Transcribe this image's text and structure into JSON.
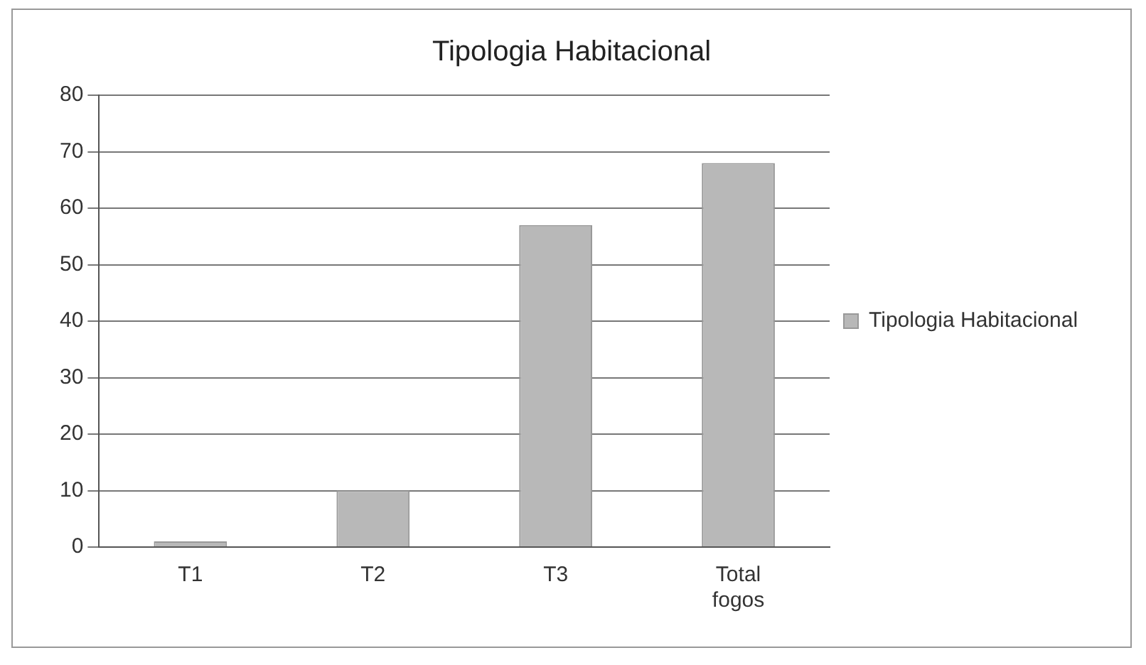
{
  "chart_data": {
    "type": "bar",
    "title": "Tipologia Habitacional",
    "categories": [
      "T1",
      "T2",
      "T3",
      "Total fogos"
    ],
    "series": [
      {
        "name": "Tipologia Habitacional",
        "color": "#b8b8b8",
        "values": [
          1,
          10,
          57,
          68
        ]
      }
    ],
    "ylim": [
      0,
      80
    ],
    "yticks": [
      0,
      10,
      20,
      30,
      40,
      50,
      60,
      70,
      80
    ],
    "grid": "y",
    "legend": "right"
  }
}
